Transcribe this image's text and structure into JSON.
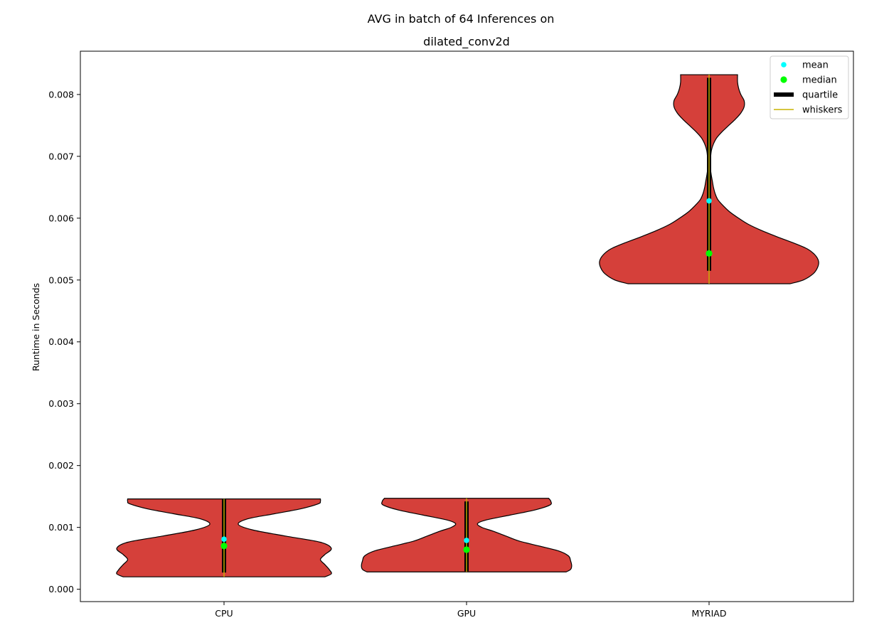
{
  "chart_data": {
    "type": "violin",
    "title": "AVG in batch of 64 Inferences on",
    "subtitle": "dilated_conv2d",
    "xlabel": "",
    "ylabel": "Runtime in Seconds",
    "categories": [
      "CPU",
      "GPU",
      "MYRIAD"
    ],
    "ylim": [
      -0.0002,
      0.0087
    ],
    "yticks": [
      0.0,
      0.001,
      0.002,
      0.003,
      0.004,
      0.005,
      0.006,
      0.007,
      0.008
    ],
    "ytick_labels": [
      "0.000",
      "0.001",
      "0.002",
      "0.003",
      "0.004",
      "0.005",
      "0.006",
      "0.007",
      "0.008"
    ],
    "grid": false,
    "legend_position": "top-right",
    "legend": [
      {
        "label": "mean",
        "marker": "dot",
        "color": "#00ffff"
      },
      {
        "label": "median",
        "marker": "dot",
        "color": "#00ff00"
      },
      {
        "label": "quartile",
        "marker": "thick-bar",
        "color": "#000000"
      },
      {
        "label": "whiskers",
        "marker": "line",
        "color": "#c8b400"
      }
    ],
    "colors": {
      "violin_fill": "#d5403a",
      "violin_edge": "#000000",
      "mean": "#00ffff",
      "median": "#00ff00",
      "quartile": "#000000",
      "whiskers": "#c8b400"
    },
    "violins": [
      {
        "category": "CPU",
        "min": 0.0002,
        "max": 0.00146,
        "mean": 0.00081,
        "median": 0.0007,
        "q1": 0.00027,
        "q3": 0.00146,
        "whisker_low": 0.0002,
        "whisker_high": 0.00146,
        "density": [
          [
            0.0002,
            0.92
          ],
          [
            0.00025,
            0.98
          ],
          [
            0.00032,
            0.96
          ],
          [
            0.0004,
            0.92
          ],
          [
            0.00048,
            0.88
          ],
          [
            0.00056,
            0.92
          ],
          [
            0.00066,
            0.98
          ],
          [
            0.00076,
            0.88
          ],
          [
            0.00086,
            0.56
          ],
          [
            0.00096,
            0.26
          ],
          [
            0.00105,
            0.13
          ],
          [
            0.00114,
            0.22
          ],
          [
            0.00122,
            0.46
          ],
          [
            0.0013,
            0.7
          ],
          [
            0.00138,
            0.86
          ],
          [
            0.00142,
            0.88
          ],
          [
            0.00146,
            0.88
          ]
        ]
      },
      {
        "category": "GPU",
        "min": 0.00028,
        "max": 0.00147,
        "mean": 0.00079,
        "median": 0.00064,
        "q1": 0.00029,
        "q3": 0.00142,
        "whisker_low": 0.00028,
        "whisker_high": 0.00147,
        "density": [
          [
            0.00028,
            0.91
          ],
          [
            0.00032,
            0.95
          ],
          [
            0.00038,
            0.96
          ],
          [
            0.00046,
            0.95
          ],
          [
            0.00054,
            0.93
          ],
          [
            0.00062,
            0.84
          ],
          [
            0.0007,
            0.66
          ],
          [
            0.00078,
            0.48
          ],
          [
            0.00086,
            0.36
          ],
          [
            0.00094,
            0.24
          ],
          [
            0.001,
            0.14
          ],
          [
            0.00106,
            0.1
          ],
          [
            0.00112,
            0.18
          ],
          [
            0.0012,
            0.4
          ],
          [
            0.00128,
            0.62
          ],
          [
            0.00136,
            0.76
          ],
          [
            0.00142,
            0.77
          ],
          [
            0.00147,
            0.75
          ]
        ]
      },
      {
        "category": "MYRIAD",
        "min": 0.00494,
        "max": 0.00832,
        "mean": 0.00628,
        "median": 0.00543,
        "q1": 0.00515,
        "q3": 0.00827,
        "whisker_low": 0.00494,
        "whisker_high": 0.00832,
        "density": [
          [
            0.00494,
            0.74
          ],
          [
            0.005,
            0.86
          ],
          [
            0.0051,
            0.95
          ],
          [
            0.0052,
            0.99
          ],
          [
            0.0053,
            1.0
          ],
          [
            0.0054,
            0.97
          ],
          [
            0.0055,
            0.9
          ],
          [
            0.0056,
            0.77
          ],
          [
            0.0057,
            0.62
          ],
          [
            0.0058,
            0.48
          ],
          [
            0.0059,
            0.36
          ],
          [
            0.006,
            0.27
          ],
          [
            0.0061,
            0.19
          ],
          [
            0.0062,
            0.13
          ],
          [
            0.0063,
            0.08
          ],
          [
            0.0064,
            0.055
          ],
          [
            0.0065,
            0.04
          ],
          [
            0.0066,
            0.03
          ],
          [
            0.0067,
            0.02
          ],
          [
            0.0068,
            0.013
          ],
          [
            0.0069,
            0.012
          ],
          [
            0.007,
            0.015
          ],
          [
            0.0071,
            0.022
          ],
          [
            0.0072,
            0.04
          ],
          [
            0.0073,
            0.07
          ],
          [
            0.0074,
            0.12
          ],
          [
            0.0075,
            0.18
          ],
          [
            0.0076,
            0.24
          ],
          [
            0.0077,
            0.29
          ],
          [
            0.0078,
            0.32
          ],
          [
            0.0079,
            0.32
          ],
          [
            0.008,
            0.29
          ],
          [
            0.0081,
            0.27
          ],
          [
            0.0082,
            0.26
          ],
          [
            0.00832,
            0.26
          ]
        ]
      }
    ]
  }
}
